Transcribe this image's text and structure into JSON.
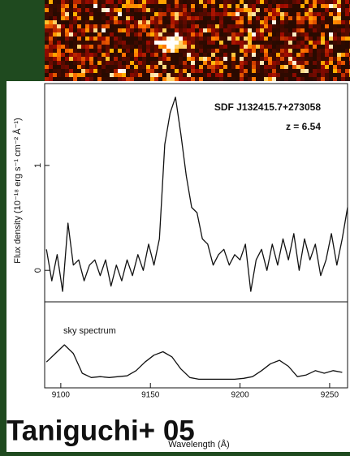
{
  "chart_data": [
    {
      "type": "line",
      "annotations": [
        "SDF J132415.7+273058",
        "z = 6.54"
      ],
      "ylabel": "Flux density (10⁻¹⁸ erg s⁻¹ cm⁻² Å⁻¹)",
      "xlim": [
        9091,
        9260
      ],
      "ylim": [
        -0.3,
        1.78
      ],
      "yticks": [
        0,
        1
      ],
      "x": [
        9092,
        9095,
        9098,
        9101,
        9104,
        9107,
        9110,
        9113,
        9116,
        9119,
        9122,
        9125,
        9128,
        9131,
        9134,
        9137,
        9140,
        9143,
        9146,
        9149,
        9152,
        9155,
        9158,
        9161,
        9164,
        9167,
        9170,
        9173,
        9176,
        9179,
        9182,
        9185,
        9188,
        9191,
        9194,
        9197,
        9200,
        9203,
        9206,
        9209,
        9212,
        9215,
        9218,
        9221,
        9224,
        9227,
        9230,
        9233,
        9236,
        9239,
        9242,
        9245,
        9248,
        9251,
        9254,
        9257,
        9260
      ],
      "values": [
        0.2,
        -0.1,
        0.15,
        -0.2,
        0.45,
        0.05,
        0.1,
        -0.1,
        0.05,
        0.1,
        -0.05,
        0.1,
        -0.15,
        0.05,
        -0.1,
        0.1,
        -0.05,
        0.15,
        0.0,
        0.25,
        0.05,
        0.3,
        1.2,
        1.5,
        1.65,
        1.3,
        0.9,
        0.6,
        0.55,
        0.3,
        0.25,
        0.05,
        0.15,
        0.2,
        0.05,
        0.15,
        0.1,
        0.25,
        -0.2,
        0.1,
        0.2,
        0.0,
        0.25,
        0.05,
        0.3,
        0.1,
        0.35,
        0.0,
        0.3,
        0.1,
        0.25,
        -0.05,
        0.1,
        0.35,
        0.05,
        0.3,
        0.6
      ],
      "color": "#111111"
    },
    {
      "type": "line",
      "annotations": [
        "sky spectrum"
      ],
      "xlabel": "Wavelength (Å)",
      "xlim": [
        9091,
        9260
      ],
      "ylim": [
        0,
        1
      ],
      "xticks": [
        9100,
        9150,
        9200,
        9250
      ],
      "x": [
        9092,
        9097,
        9102,
        9107,
        9112,
        9117,
        9122,
        9127,
        9132,
        9137,
        9142,
        9147,
        9152,
        9157,
        9162,
        9167,
        9172,
        9177,
        9182,
        9187,
        9192,
        9197,
        9202,
        9207,
        9212,
        9217,
        9222,
        9227,
        9232,
        9237,
        9242,
        9247,
        9252,
        9257
      ],
      "values": [
        0.3,
        0.4,
        0.5,
        0.4,
        0.17,
        0.12,
        0.13,
        0.12,
        0.13,
        0.14,
        0.2,
        0.3,
        0.38,
        0.42,
        0.36,
        0.22,
        0.12,
        0.1,
        0.1,
        0.1,
        0.1,
        0.1,
        0.11,
        0.13,
        0.2,
        0.28,
        0.32,
        0.25,
        0.13,
        0.15,
        0.2,
        0.17,
        0.2,
        0.18
      ],
      "color": "#111111"
    }
  ],
  "caption": "Taniguchi+ 05"
}
